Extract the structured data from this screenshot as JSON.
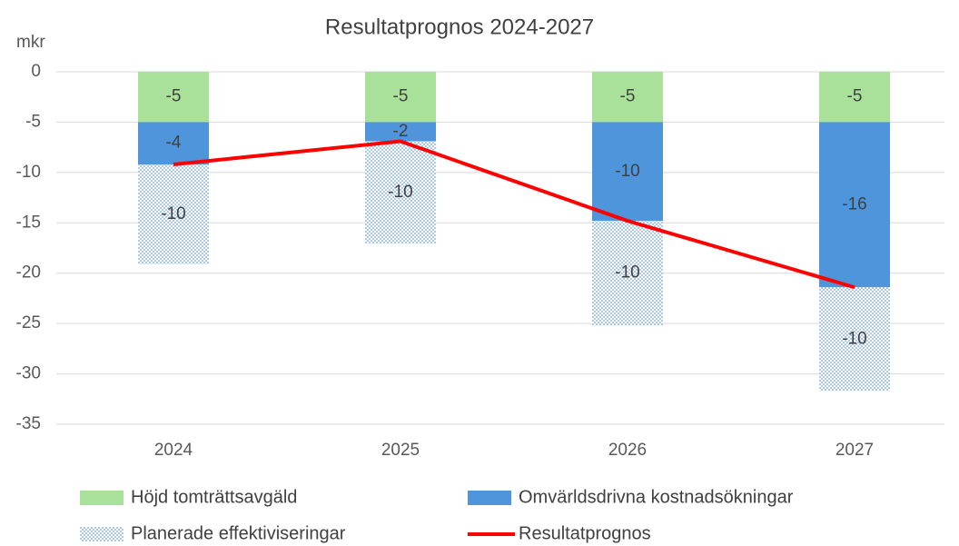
{
  "chart_data": {
    "type": "bar",
    "stacked": true,
    "title": "Resultatprognos 2024-2027",
    "y_label": "mkr",
    "categories": [
      "2024",
      "2025",
      "2026",
      "2027"
    ],
    "series": [
      {
        "name": "Höjd tomträttsavgäld",
        "type": "bar",
        "color": "#a9e09a",
        "values": [
          -5,
          -5,
          -5,
          -5
        ],
        "value_labels": [
          "-5",
          "-5",
          "-5",
          "-5"
        ]
      },
      {
        "name": "Omvärldsdrivna kostnadsökningar",
        "type": "bar",
        "color": "#4f95db",
        "values": [
          -4.2,
          -1.9,
          -9.8,
          -16.4
        ],
        "value_labels": [
          "-4",
          "-2",
          "-10",
          "-16"
        ]
      },
      {
        "name": "Planerade effektiviseringar",
        "type": "bar",
        "color": "#6fa3d8",
        "pattern": "dots",
        "values": [
          -9.9,
          -10.2,
          -10.4,
          -10.3
        ],
        "value_labels": [
          "-10",
          "-10",
          "-10",
          "-10"
        ]
      },
      {
        "name": "Resultatprognos",
        "type": "line",
        "color": "#ff0000",
        "values": [
          -9.2,
          -6.9,
          -14.8,
          -21.4
        ]
      }
    ],
    "ylim": [
      -35,
      0
    ],
    "yticks": [
      0,
      -5,
      -10,
      -15,
      -20,
      -25,
      -30,
      -35
    ],
    "grid": true,
    "legend": "bottom"
  }
}
